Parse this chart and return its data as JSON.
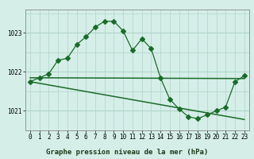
{
  "title": "Graphe pression niveau de la mer (hPa)",
  "background_color": "#d5eee8",
  "grid_major_color": "#b0d4c8",
  "grid_minor_color": "#c8e8e0",
  "line_color": "#1a6b2a",
  "xlim": [
    -0.5,
    23.5
  ],
  "ylim": [
    1020.5,
    1023.6
  ],
  "yticks": [
    1021,
    1022,
    1023
  ],
  "xticks": [
    0,
    1,
    2,
    3,
    4,
    5,
    6,
    7,
    8,
    9,
    10,
    11,
    12,
    13,
    14,
    15,
    16,
    17,
    18,
    19,
    20,
    21,
    22,
    23
  ],
  "series1_x": [
    0,
    1,
    2,
    3,
    4,
    5,
    6,
    7,
    8,
    9,
    10,
    11,
    12,
    13,
    14,
    15,
    16,
    17,
    18,
    19,
    20,
    21,
    22,
    23
  ],
  "series1_y": [
    1021.75,
    1021.85,
    1021.95,
    1022.3,
    1022.35,
    1022.7,
    1022.9,
    1023.15,
    1023.3,
    1023.3,
    1023.05,
    1022.55,
    1022.85,
    1022.6,
    1021.85,
    1021.3,
    1021.05,
    1020.85,
    1020.8,
    1020.9,
    1021.0,
    1021.1,
    1021.75,
    1021.9
  ],
  "series2_x": [
    0,
    23
  ],
  "series2_y": [
    1021.85,
    1021.83
  ],
  "series3_x": [
    0,
    23
  ],
  "series3_y": [
    1021.75,
    1020.78
  ],
  "title_fontsize": 6.5,
  "tick_fontsize": 5.5,
  "marker_size": 3.0,
  "line_width": 0.9
}
